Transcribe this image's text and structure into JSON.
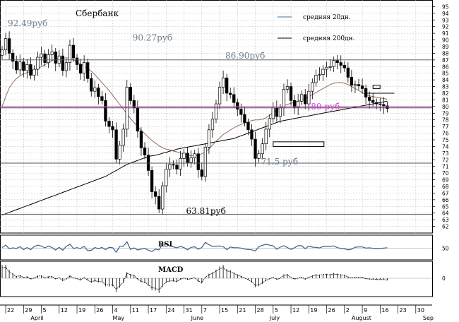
{
  "chart_data": {
    "type": "candlestick",
    "title": "Сбербанк",
    "legend": {
      "placement": "top-right",
      "entries": [
        {
          "name": "средняя 20дн.",
          "color": "#4a6f9a"
        },
        {
          "name": "средняя 200дн.",
          "color": "#000000"
        }
      ]
    },
    "y_axis": {
      "range": [
        61,
        96
      ],
      "ticks": [
        62,
        63,
        64,
        65,
        66,
        67,
        68,
        69,
        70,
        71,
        72,
        73,
        74,
        75,
        76,
        77,
        78,
        79,
        80,
        81,
        82,
        83,
        84,
        85,
        86,
        87,
        88,
        89,
        90,
        91,
        92,
        93,
        94,
        95
      ]
    },
    "x_axis": {
      "day_labels": [
        {
          "i": 1,
          "t": "22"
        },
        {
          "i": 6,
          "t": "29"
        },
        {
          "i": 11,
          "t": "5"
        },
        {
          "i": 16,
          "t": "12"
        },
        {
          "i": 21,
          "t": "19"
        },
        {
          "i": 26,
          "t": "26"
        },
        {
          "i": 31,
          "t": "4"
        },
        {
          "i": 36,
          "t": "11"
        },
        {
          "i": 41,
          "t": "17"
        },
        {
          "i": 46,
          "t": "24"
        },
        {
          "i": 51,
          "t": "31"
        },
        {
          "i": 56,
          "t": "7"
        },
        {
          "i": 61,
          "t": "15"
        },
        {
          "i": 66,
          "t": "21"
        },
        {
          "i": 71,
          "t": "28"
        },
        {
          "i": 76,
          "t": "5"
        },
        {
          "i": 81,
          "t": "12"
        },
        {
          "i": 86,
          "t": "19"
        },
        {
          "i": 91,
          "t": "26"
        },
        {
          "i": 96,
          "t": "2"
        },
        {
          "i": 101,
          "t": "9"
        },
        {
          "i": 106,
          "t": "16"
        },
        {
          "i": 111,
          "t": "23"
        },
        {
          "i": 116,
          "t": "30"
        }
      ],
      "month_labels": [
        {
          "i": 8,
          "t": "April"
        },
        {
          "i": 31,
          "t": "May"
        },
        {
          "i": 53,
          "t": "June"
        },
        {
          "i": 75,
          "t": "July"
        },
        {
          "i": 98,
          "t": "August"
        },
        {
          "i": 118,
          "t": "Sep"
        }
      ]
    },
    "close": [
      88.5,
      90.2,
      88.0,
      86.8,
      85.5,
      86.7,
      85.4,
      86.3,
      84.7,
      85.6,
      87.4,
      87.9,
      86.6,
      87.8,
      88.2,
      86.5,
      87.6,
      85.4,
      86.6,
      89.2,
      87.3,
      86.3,
      85.0,
      86.6,
      84.2,
      82.3,
      82.8,
      81.5,
      80.9,
      77.8,
      77.0,
      76.5,
      72.1,
      74.2,
      76.6,
      82.9,
      80.9,
      79.8,
      76.3,
      73.8,
      72.7,
      70.4,
      67.2,
      66.5,
      64.6,
      68.1,
      70.6,
      71.3,
      71.2,
      70.6,
      72.2,
      73.0,
      71.6,
      72.3,
      72.9,
      70.5,
      69.5,
      73.9,
      76.5,
      78.1,
      80.4,
      82.9,
      84.3,
      82.0,
      81.8,
      80.6,
      79.6,
      78.8,
      77.6,
      76.5,
      75.1,
      72.2,
      72.9,
      74.4,
      76.6,
      78.2,
      79.8,
      78.5,
      79.8,
      82.6,
      83.0,
      80.9,
      79.9,
      80.8,
      81.8,
      80.4,
      82.3,
      83.6,
      84.7,
      84.8,
      85.6,
      85.9,
      86.0,
      86.9,
      86.6,
      86.2,
      85.8,
      84.4,
      83.2,
      83.3,
      83.1,
      82.7,
      81.4,
      80.9,
      80.6,
      80.4,
      80.3,
      80.1,
      79.7
    ],
    "ma20": [
      80.0,
      81.5,
      82.8,
      83.6,
      84.2,
      84.6,
      84.9,
      85.1,
      85.3,
      85.5,
      85.7,
      86.0,
      86.3,
      86.6,
      86.9,
      87.1,
      87.2,
      87.3,
      87.3,
      87.3,
      87.0,
      86.7,
      86.4,
      86.1,
      85.7,
      85.3,
      84.8,
      84.2,
      83.6,
      83.0,
      82.4,
      81.7,
      81.0,
      80.3,
      79.6,
      78.9,
      78.2,
      77.6,
      77.0,
      76.4,
      75.9,
      75.4,
      74.9,
      74.5,
      74.1,
      73.8,
      73.6,
      73.5,
      73.3,
      73.2,
      73.0,
      72.9,
      72.7,
      72.6,
      72.6,
      72.7,
      72.9,
      73.2,
      73.6,
      74.2,
      74.8,
      75.3,
      75.8,
      76.1,
      76.5,
      76.8,
      77.1,
      77.3,
      77.5,
      77.7,
      77.9,
      78.0,
      78.0,
      78.1,
      78.3,
      78.7,
      79.1,
      79.5,
      79.8,
      80.1,
      80.3,
      80.5,
      80.6,
      80.8,
      81.0,
      81.2,
      81.5,
      81.8,
      82.1,
      82.4,
      82.7,
      83.0,
      83.3,
      83.5,
      83.6,
      83.6,
      83.5,
      83.3,
      83.0,
      82.7,
      82.4,
      82.1,
      81.8,
      81.6,
      81.5,
      81.4,
      81.3,
      81.2,
      81.1
    ],
    "ma200": [
      63.7,
      63.9,
      64.1,
      64.3,
      64.5,
      64.7,
      64.9,
      65.1,
      65.3,
      65.5,
      65.7,
      65.9,
      66.1,
      66.3,
      66.5,
      66.7,
      66.9,
      67.1,
      67.3,
      67.5,
      67.7,
      67.9,
      68.1,
      68.3,
      68.5,
      68.7,
      68.9,
      69.1,
      69.3,
      69.5,
      69.8,
      70.1,
      70.4,
      70.7,
      71.0,
      71.3,
      71.5,
      71.7,
      71.9,
      72.1,
      72.3,
      72.5,
      72.6,
      72.7,
      72.8,
      73.0,
      73.1,
      73.3,
      73.4,
      73.6,
      73.7,
      73.8,
      73.9,
      74.0,
      74.1,
      74.2,
      74.3,
      74.4,
      74.5,
      74.6,
      74.7,
      74.8,
      74.9,
      75.0,
      75.1,
      75.2,
      75.4,
      75.6,
      75.8,
      76.0,
      76.2,
      76.4,
      76.6,
      76.8,
      77.0,
      77.2,
      77.4,
      77.6,
      77.8,
      77.9,
      78.0,
      78.1,
      78.2,
      78.3,
      78.4,
      78.5,
      78.6,
      78.7,
      78.8,
      78.9,
      79.0,
      79.1,
      79.2,
      79.3,
      79.4,
      79.5,
      79.6,
      79.7,
      79.8,
      79.9,
      80.0,
      80.1,
      80.2,
      80.3,
      80.4,
      80.5,
      80.6,
      80.7,
      80.8
    ],
    "hlines": [
      {
        "y": 87.0,
        "color": "#555555"
      },
      {
        "y": 80.0,
        "color": "#cc44cc"
      },
      {
        "y": 79.8,
        "color": "#444444"
      },
      {
        "y": 71.5,
        "color": "#555555"
      },
      {
        "y": 63.8,
        "color": "#555555"
      }
    ],
    "annotations": [
      {
        "text": "92.49руб",
        "y": 92.5,
        "i": 0,
        "color": "#6b7b8e"
      },
      {
        "text": "90.27руб",
        "y": 90.3,
        "i": 35,
        "color": "#6b7b8e"
      },
      {
        "text": "86.90руб",
        "y": 87.6,
        "i": 61,
        "color": "#6b7b8e"
      },
      {
        "text": "80 руб",
        "y": 80.0,
        "i": 85,
        "color": "#cc44cc"
      },
      {
        "text": "71.5 руб",
        "y": 71.7,
        "i": 71,
        "color": "#6b7b8e"
      },
      {
        "text": "63.81руб",
        "y": 64.3,
        "i": 50,
        "color": "#000000"
      }
    ],
    "rsi": {
      "label": "RSI",
      "level": 50
    },
    "macd": {
      "label": "MACD",
      "level": 0
    }
  }
}
